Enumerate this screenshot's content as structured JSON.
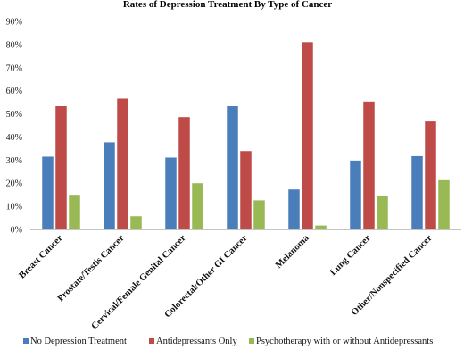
{
  "chart_data": {
    "type": "bar",
    "title": "Rates of Depression Treatment By Type of Cancer",
    "categories": [
      "Breast Cancer",
      "Prostate/Testis Cancer",
      "Cervical/Female Genital Cancer",
      "Colorectal/Other GI Cancer",
      "Melanoma",
      "Lung Cancer",
      "Other/Nonspecified Cancer"
    ],
    "series": [
      {
        "name": "No Depression Treatment",
        "color": "#4a7ebb",
        "values": [
          31.5,
          37.7,
          31.1,
          53.3,
          17.3,
          29.8,
          31.7
        ]
      },
      {
        "name": "Antidepressants Only",
        "color": "#be4b48",
        "values": [
          53.3,
          56.6,
          48.6,
          33.9,
          81.0,
          55.3,
          46.7
        ]
      },
      {
        "name": "Psychotherapy with or without Antidepressants",
        "color": "#98b954",
        "values": [
          15.0,
          5.7,
          20.0,
          12.6,
          1.7,
          14.7,
          21.3
        ]
      }
    ],
    "ylim": [
      0,
      90
    ],
    "yticks": [
      "0%",
      "10%",
      "20%",
      "30%",
      "40%",
      "50%",
      "60%",
      "70%",
      "80%",
      "90%"
    ],
    "legend_position": "bottom",
    "grid": false
  }
}
